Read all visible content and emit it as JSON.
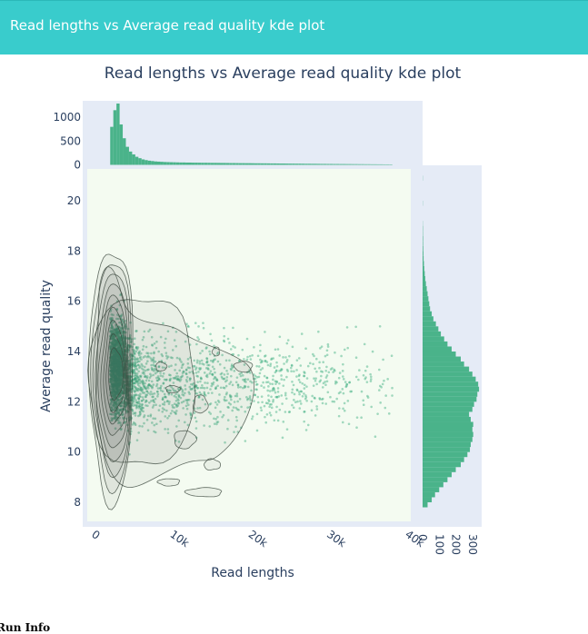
{
  "header": {
    "title": "Read lengths vs Average read quality kde plot"
  },
  "footer": {
    "section_label": "Run Info"
  },
  "colors": {
    "marker": "#3aad7f",
    "hist": "#4ab38a",
    "contour": "#3d4a40",
    "plot_bg": "#f4fbf1",
    "axis_bg": "#e5ebf6",
    "text": "#2a3f5f"
  },
  "chart_data": {
    "type": "scatter",
    "title": "Read lengths vs Average read quality kde plot",
    "xlabel": "Read lengths",
    "ylabel": "Average read quality",
    "xlim": [
      0,
      41000
    ],
    "ylim": [
      7.2,
      21.4
    ],
    "x_ticks": [
      {
        "value": 0,
        "label": "0"
      },
      {
        "value": 10000,
        "label": "10k"
      },
      {
        "value": 20000,
        "label": "20k"
      },
      {
        "value": 30000,
        "label": "30k"
      },
      {
        "value": 40000,
        "label": "40k"
      }
    ],
    "y_ticks": [
      {
        "value": 8,
        "label": "8"
      },
      {
        "value": 10,
        "label": "10"
      },
      {
        "value": 12,
        "label": "12"
      },
      {
        "value": 14,
        "label": "14"
      },
      {
        "value": 16,
        "label": "16"
      },
      {
        "value": 18,
        "label": "18"
      },
      {
        "value": 20,
        "label": "20"
      }
    ],
    "x_marginal_hist": {
      "count_ticks": [
        {
          "value": 0,
          "label": "0"
        },
        {
          "value": 500,
          "label": "500"
        },
        {
          "value": 1000,
          "label": "1000"
        }
      ],
      "count_max": 1290,
      "bin_width": 400,
      "bin_start": 2000,
      "counts": [
        800,
        1150,
        1290,
        850,
        560,
        380,
        280,
        220,
        170,
        140,
        115,
        100,
        88,
        80,
        72,
        68,
        64,
        60,
        58,
        56,
        54,
        52,
        50,
        50,
        48,
        48,
        46,
        46,
        45,
        44,
        44,
        43,
        42,
        42,
        41,
        40,
        40,
        39,
        38,
        38,
        37,
        36,
        36,
        35,
        35,
        34,
        33,
        33,
        32,
        32,
        31,
        30,
        30,
        29,
        28,
        28,
        27,
        26,
        26,
        25,
        25,
        24,
        23,
        23,
        22,
        22,
        21,
        20,
        20,
        19,
        19,
        18,
        18,
        17,
        17,
        16,
        16,
        15,
        15,
        14,
        14,
        13,
        13,
        12,
        12,
        11,
        11,
        10,
        10,
        9
      ]
    },
    "y_marginal_hist": {
      "count_ticks": [
        {
          "value": 0,
          "label": "0"
        },
        {
          "value": 100,
          "label": "100"
        },
        {
          "value": 200,
          "label": "200"
        },
        {
          "value": 300,
          "label": "300"
        }
      ],
      "count_max": 345,
      "bin_width": 0.2,
      "bin_start": 7.8,
      "counts": [
        30,
        55,
        75,
        100,
        125,
        150,
        175,
        200,
        230,
        250,
        270,
        285,
        290,
        300,
        305,
        300,
        305,
        290,
        280,
        300,
        310,
        325,
        330,
        340,
        335,
        320,
        300,
        280,
        250,
        230,
        200,
        175,
        150,
        130,
        110,
        95,
        80,
        65,
        55,
        45,
        40,
        35,
        30,
        25,
        20,
        16,
        13,
        10,
        8,
        6,
        5,
        4,
        3,
        3,
        2,
        2,
        1,
        0,
        0,
        0,
        1,
        0,
        0,
        0,
        0,
        1
      ]
    }
  }
}
